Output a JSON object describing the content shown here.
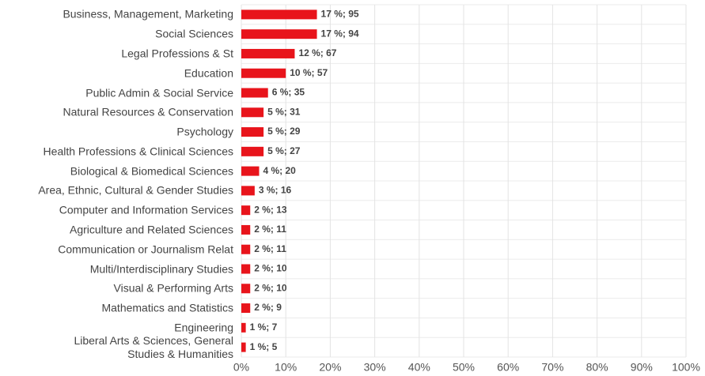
{
  "chart_data": {
    "type": "bar",
    "orientation": "horizontal",
    "color": "#e8141b",
    "grid": true,
    "categories": [
      "Business, Management, Marketing",
      "Social Sciences",
      "Legal Professions & St",
      "Education",
      "Public Admin & Social Service",
      "Natural Resources & Conservation",
      "Psychology",
      "Health Professions & Clinical Sciences",
      "Biological & Biomedical Sciences",
      "Area, Ethnic, Cultural & Gender Studies",
      "Computer and Information Services",
      "Agriculture and Related Sciences",
      "Communication or Journalism Relat",
      "Multi/Interdisciplinary Studies",
      "Visual & Performing Arts",
      "Mathematics and Statistics",
      "Engineering",
      "Liberal Arts & Sciences, General\nStudies & Humanities"
    ],
    "values": [
      17,
      17,
      12,
      10,
      6,
      5,
      5,
      5,
      4,
      3,
      2,
      2,
      2,
      2,
      2,
      2,
      1,
      1
    ],
    "value_labels": [
      "17 %; 95",
      "17 %; 94",
      "12 %; 67",
      "10 %; 57",
      "6 %; 35",
      "5 %; 31",
      "5 %; 29",
      "5 %; 27",
      "4 %; 20",
      "3 %; 16",
      "2 %; 13",
      "2 %; 11",
      "2 %; 11",
      "2 %; 10",
      "2 %; 10",
      "2 %; 9",
      "1 %; 7",
      "1 %; 5"
    ],
    "xlim": [
      0,
      100
    ],
    "xticks": [
      {
        "value": 0,
        "label": "0%"
      },
      {
        "value": 10,
        "label": "10%"
      },
      {
        "value": 20,
        "label": "20%"
      },
      {
        "value": 30,
        "label": "30%"
      },
      {
        "value": 40,
        "label": "40%"
      },
      {
        "value": 50,
        "label": "50%"
      },
      {
        "value": 60,
        "label": "60%"
      },
      {
        "value": 70,
        "label": "70%"
      },
      {
        "value": 80,
        "label": "80%"
      },
      {
        "value": 90,
        "label": "90%"
      },
      {
        "value": 100,
        "label": "100%"
      }
    ]
  }
}
